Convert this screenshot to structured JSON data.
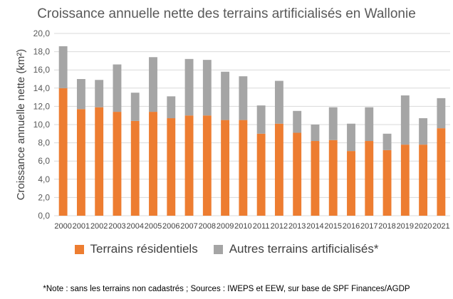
{
  "chart_data": {
    "type": "bar",
    "stacked": true,
    "title": "Croissance annuelle nette des terrains artificialisés en Wallonie",
    "ylabel": "Croissance annuelle nette (km²)",
    "xlabel": "",
    "ylim": [
      0,
      20
    ],
    "yticks": [
      "0,0",
      "2,0",
      "4,0",
      "6,0",
      "8,0",
      "10,0",
      "12,0",
      "14,0",
      "16,0",
      "18,0",
      "20,0"
    ],
    "grid": true,
    "legend_position": "bottom",
    "categories": [
      "2000",
      "2001",
      "2002",
      "2003",
      "2004",
      "2005",
      "2006",
      "2007",
      "2008",
      "2009",
      "2010",
      "2011",
      "2012",
      "2013",
      "2014",
      "2015",
      "2016",
      "2017",
      "2018",
      "2019",
      "2020",
      "2021"
    ],
    "series": [
      {
        "name": "Terrains résidentiels",
        "color": "#ED7D31",
        "values": [
          14.0,
          11.7,
          11.9,
          11.4,
          10.4,
          11.4,
          10.7,
          11.0,
          11.0,
          10.5,
          10.5,
          9.0,
          10.1,
          9.1,
          8.2,
          8.3,
          7.1,
          8.2,
          7.2,
          7.8,
          7.8,
          9.6
        ]
      },
      {
        "name": "Autres terrains artificialisés*",
        "color": "#A5A5A5",
        "values": [
          4.6,
          3.3,
          3.0,
          5.2,
          3.1,
          6.0,
          2.4,
          6.2,
          6.1,
          5.3,
          4.8,
          3.1,
          4.7,
          2.4,
          1.8,
          3.6,
          3.0,
          3.7,
          1.8,
          5.4,
          2.9,
          3.3
        ]
      }
    ]
  },
  "footnote": "*Note : sans les terrains non cadastrés ; Sources : IWEPS et EEW, sur base de SPF Finances/AGDP"
}
